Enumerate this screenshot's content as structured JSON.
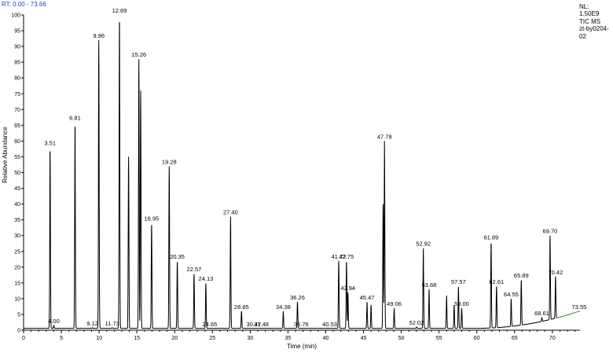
{
  "header": {
    "rt_label": "RT:",
    "rt_range": "0.00 - 73.66",
    "nl_lines": [
      "NL:",
      "1.50E9",
      "TIC MS",
      "zt-by0204-",
      "02"
    ]
  },
  "colors": {
    "trace": "#000000",
    "accent": "#1a3fc4",
    "tail": "#2aa02a",
    "axis": "#000000"
  },
  "chart_data": {
    "type": "line",
    "title": "",
    "xlabel": "Time (min)",
    "ylabel": "Relative Abundance",
    "xlim": [
      0,
      73.66
    ],
    "ylim": [
      0,
      100
    ],
    "xticks": [
      0,
      5,
      10,
      15,
      20,
      25,
      30,
      35,
      40,
      45,
      50,
      55,
      60,
      65,
      70
    ],
    "yticks": [
      0,
      5,
      10,
      15,
      20,
      25,
      30,
      35,
      40,
      45,
      50,
      55,
      60,
      65,
      70,
      75,
      80,
      85,
      90,
      95,
      100
    ],
    "peaks": [
      {
        "rt": 3.51,
        "abundance": 58,
        "label": "3.51"
      },
      {
        "rt": 4.0,
        "abundance": 1.5,
        "label": "4.00"
      },
      {
        "rt": 6.81,
        "abundance": 66,
        "label": "6.81"
      },
      {
        "rt": 9.12,
        "abundance": 0.8,
        "label": "9.12"
      },
      {
        "rt": 9.96,
        "abundance": 92,
        "label": "9.96"
      },
      {
        "rt": 11.73,
        "abundance": 0.8,
        "label": "11.73"
      },
      {
        "rt": 12.69,
        "abundance": 100,
        "label": "12.69"
      },
      {
        "rt": 13.9,
        "abundance": 55,
        "label": ""
      },
      {
        "rt": 15.26,
        "abundance": 86,
        "label": "15.26"
      },
      {
        "rt": 15.5,
        "abundance": 76,
        "label": ""
      },
      {
        "rt": 16.95,
        "abundance": 34,
        "label": "16.95"
      },
      {
        "rt": 19.28,
        "abundance": 52,
        "label": "19.28"
      },
      {
        "rt": 20.35,
        "abundance": 22,
        "label": "20.35"
      },
      {
        "rt": 22.57,
        "abundance": 18,
        "label": "22.57"
      },
      {
        "rt": 24.13,
        "abundance": 15,
        "label": "24.13"
      },
      {
        "rt": 24.65,
        "abundance": 0.5,
        "label": "24.65"
      },
      {
        "rt": 27.4,
        "abundance": 36,
        "label": "27.40"
      },
      {
        "rt": 28.85,
        "abundance": 6,
        "label": "28.85"
      },
      {
        "rt": 30.47,
        "abundance": 0.5,
        "label": "30.47"
      },
      {
        "rt": 31.48,
        "abundance": 0.5,
        "label": "31.48"
      },
      {
        "rt": 34.38,
        "abundance": 6,
        "label": "34.38"
      },
      {
        "rt": 36.26,
        "abundance": 9,
        "label": "36.26"
      },
      {
        "rt": 36.76,
        "abundance": 0.5,
        "label": "36.76"
      },
      {
        "rt": 40.53,
        "abundance": 0.5,
        "label": "40.53"
      },
      {
        "rt": 41.72,
        "abundance": 22,
        "label": "41.72"
      },
      {
        "rt": 42.75,
        "abundance": 22,
        "label": "42.75"
      },
      {
        "rt": 42.94,
        "abundance": 12,
        "label": "42.94"
      },
      {
        "rt": 45.47,
        "abundance": 9,
        "label": "45.47"
      },
      {
        "rt": 46.0,
        "abundance": 8,
        "label": ""
      },
      {
        "rt": 47.78,
        "abundance": 60,
        "label": "47.78"
      },
      {
        "rt": 47.6,
        "abundance": 40,
        "label": ""
      },
      {
        "rt": 49.06,
        "abundance": 7,
        "label": "49.06"
      },
      {
        "rt": 52.02,
        "abundance": 1,
        "label": "52.02"
      },
      {
        "rt": 52.92,
        "abundance": 26,
        "label": "52.92"
      },
      {
        "rt": 53.68,
        "abundance": 13,
        "label": "53.68"
      },
      {
        "rt": 56.0,
        "abundance": 11,
        "label": ""
      },
      {
        "rt": 57.57,
        "abundance": 14,
        "label": "57.57"
      },
      {
        "rt": 57.0,
        "abundance": 8,
        "label": ""
      },
      {
        "rt": 58.0,
        "abundance": 7,
        "label": "58.00"
      },
      {
        "rt": 61.89,
        "abundance": 28,
        "label": "61.89"
      },
      {
        "rt": 62.61,
        "abundance": 14,
        "label": "62.61"
      },
      {
        "rt": 64.55,
        "abundance": 10,
        "label": "64.55"
      },
      {
        "rt": 65.89,
        "abundance": 16,
        "label": "65.89"
      },
      {
        "rt": 68.61,
        "abundance": 4,
        "label": "68.61"
      },
      {
        "rt": 69.7,
        "abundance": 30,
        "label": "69.70"
      },
      {
        "rt": 70.42,
        "abundance": 17,
        "label": "70.42"
      },
      {
        "rt": 73.55,
        "abundance": 6,
        "label": "73.55"
      }
    ]
  }
}
